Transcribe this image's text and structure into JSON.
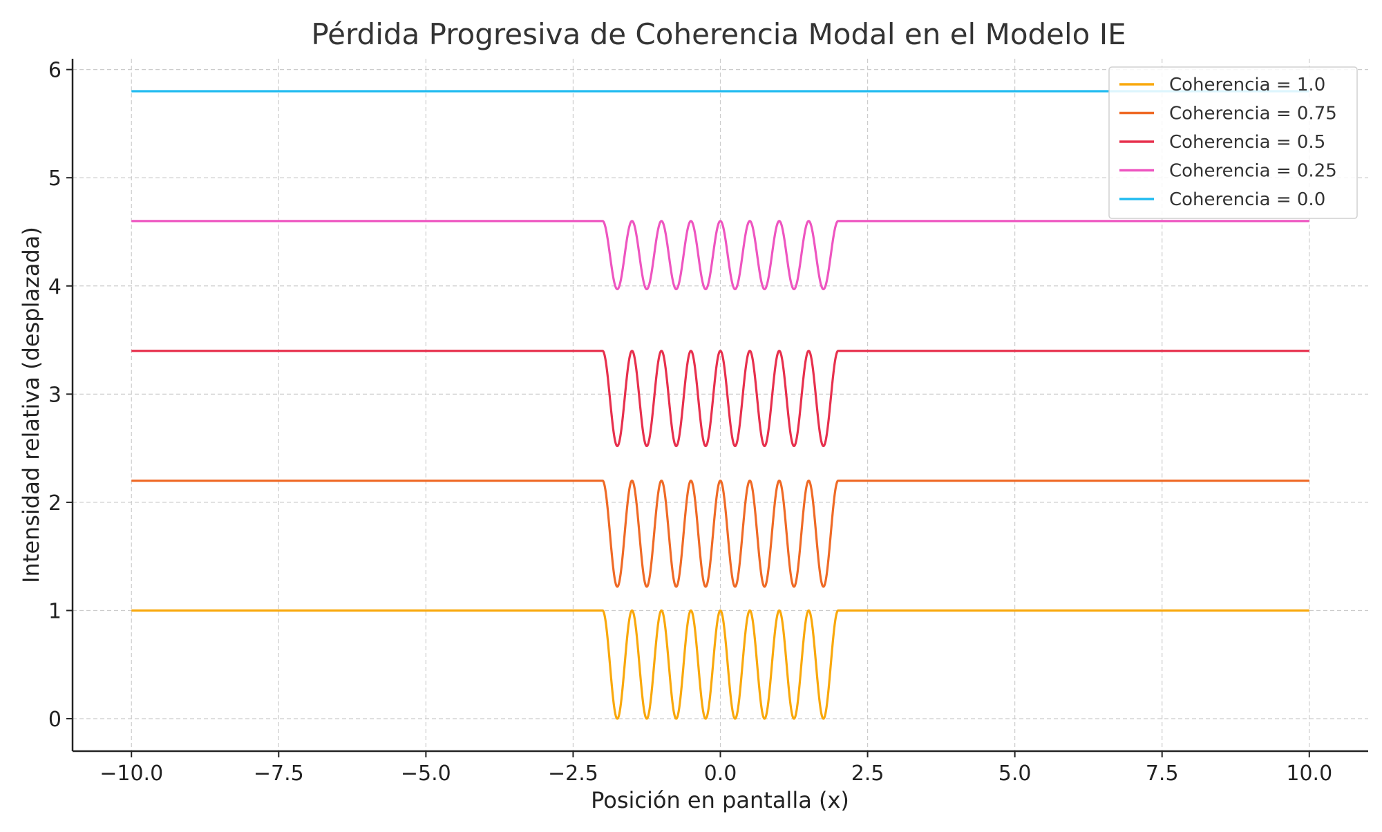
{
  "chart_data": {
    "type": "line",
    "title": "Pérdida Progresiva de Coherencia Modal en el Modelo IE",
    "xlabel": "Posición en pantalla (x)",
    "ylabel": "Intensidad relativa (desplazada)",
    "xlim": [
      -11,
      11
    ],
    "ylim": [
      -0.3,
      6.1
    ],
    "xticks": [
      -10.0,
      -7.5,
      -5.0,
      -2.5,
      0.0,
      2.5,
      5.0,
      7.5,
      10.0
    ],
    "xtick_labels": [
      "−10.0",
      "−7.5",
      "−5.0",
      "−2.5",
      "0.0",
      "2.5",
      "5.0",
      "7.5",
      "10.0"
    ],
    "yticks": [
      0,
      1,
      2,
      3,
      4,
      5,
      6
    ],
    "ytick_labels": [
      "0",
      "1",
      "2",
      "3",
      "4",
      "5",
      "6"
    ],
    "grid": true,
    "legend_position": "top-right",
    "x_range": [
      -10,
      10
    ],
    "central_region": [
      -2,
      2
    ],
    "fringe_period": 0.5,
    "series": [
      {
        "name": "Coherencia = 1.0",
        "color": "#f9a80c",
        "baseline": 1.0,
        "trough": 0.0
      },
      {
        "name": "Coherencia = 0.75",
        "color": "#ef6a26",
        "baseline": 2.2,
        "trough": 1.22
      },
      {
        "name": "Coherencia = 0.5",
        "color": "#e7304d",
        "baseline": 3.4,
        "trough": 2.52
      },
      {
        "name": "Coherencia = 0.25",
        "color": "#ee55c0",
        "baseline": 4.6,
        "trough": 3.97
      },
      {
        "name": "Coherencia = 0.0",
        "color": "#20bbf0",
        "baseline": 5.8,
        "trough": 5.8
      }
    ]
  }
}
